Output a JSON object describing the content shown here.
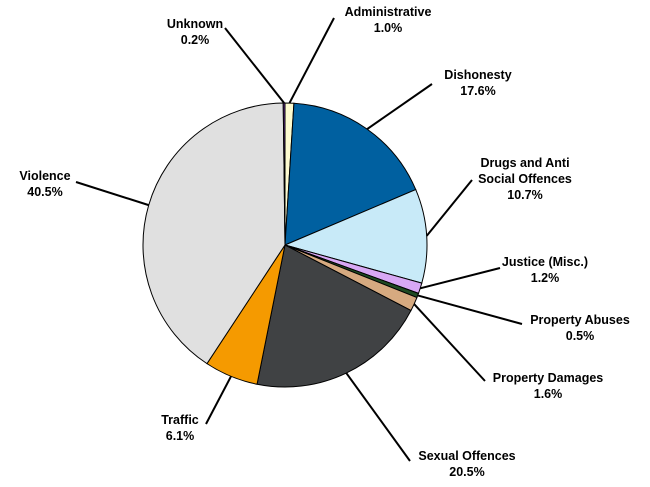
{
  "chart_data": {
    "type": "pie",
    "categories": [
      "Administrative",
      "Dishonesty",
      "Drugs and Anti Social Offences",
      "Justice (Misc.)",
      "Property Abuses",
      "Property Damages",
      "Sexual Offences",
      "Traffic",
      "Violence",
      "Unknown"
    ],
    "values": [
      1.0,
      17.6,
      10.7,
      1.2,
      0.5,
      1.6,
      20.5,
      6.1,
      40.5,
      0.2
    ],
    "value_labels": [
      "1.0%",
      "17.6%",
      "10.7%",
      "1.2%",
      "0.5%",
      "1.6%",
      "20.5%",
      "6.1%",
      "40.5%",
      "0.2%"
    ],
    "colors": [
      "#fdfbd0",
      "#0060a0",
      "#c8eaf8",
      "#d8a8f4",
      "#1e4a22",
      "#d6aa80",
      "#404244",
      "#f59a00",
      "#e0e0e0",
      "#7030a0"
    ]
  }
}
